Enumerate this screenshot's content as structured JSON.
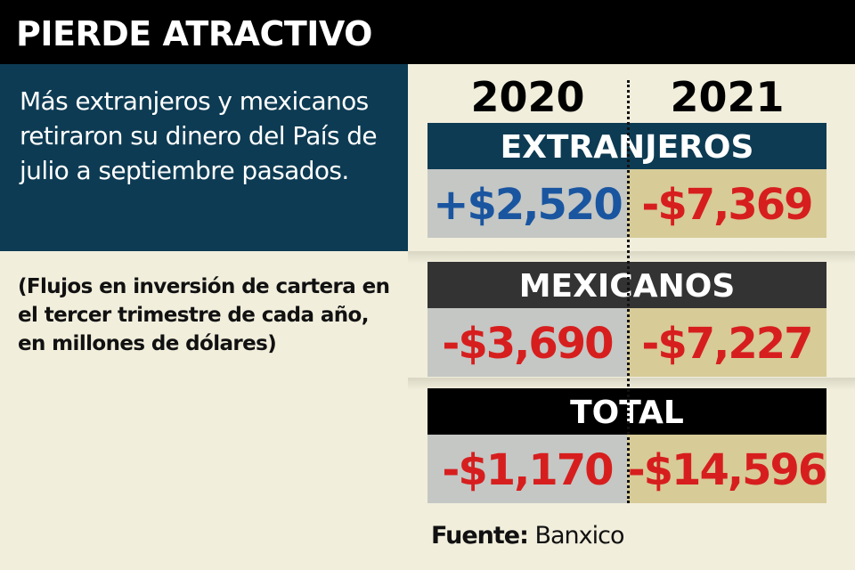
{
  "title": "PIERDE ATRACTIVO",
  "intro": "Más extranjeros y mexicanos retiraron su dinero del País de julio a septiembre pasados.",
  "note": "(Flujos en inversión de cartera en el tercer trimestre de cada año, en millones de dólares)",
  "source_label": "Fuente:",
  "source_value": "Banxico",
  "colors": {
    "positive": "#1a55a0",
    "negative": "#d71e1e",
    "extranjeros_band": "#0d3b53",
    "mexicanos_band": "#333333",
    "total_band": "#000000"
  },
  "chart_data": {
    "type": "table",
    "columns": [
      "2020",
      "2021"
    ],
    "rows": [
      {
        "label": "EXTRANJEROS",
        "values": [
          2520,
          -7369
        ],
        "display": [
          "+$2,520",
          "-$7,369"
        ]
      },
      {
        "label": "MEXICANOS",
        "values": [
          -3690,
          -7227
        ],
        "display": [
          "-$3,690",
          "-$7,227"
        ]
      },
      {
        "label": "TOTAL",
        "values": [
          -1170,
          -14596
        ],
        "display": [
          "-$1,170",
          "-$14,596"
        ]
      }
    ]
  }
}
